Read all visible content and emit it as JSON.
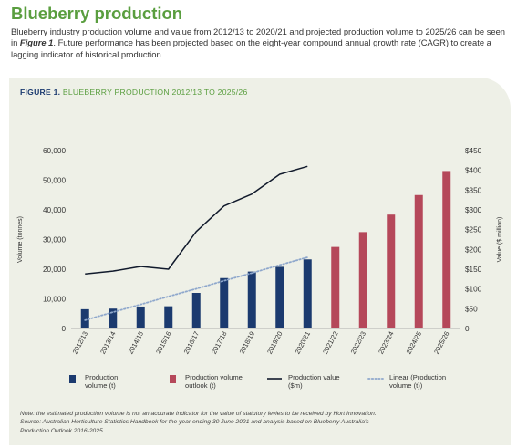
{
  "page": {
    "title": "Blueberry production",
    "intro": {
      "before": "Blueberry industry production volume and value from 2012/13 to 2020/21 and projected production volume to 2025/26 can be seen in ",
      "figure_ref": "Figure 1",
      "after": ". Future performance has been projected based on the eight-year compound annual growth rate (CAGR) to create a lagging indicator of historical production."
    }
  },
  "figure": {
    "number": "FIGURE 1.",
    "caption": "BLUEBERRY PRODUCTION 2012/13 TO 2025/26",
    "notes": {
      "line1": "Note: the estimated production volume is not an accurate indicator for the value of statutory levies to be received by Hort Innovation.",
      "line2": "Source: Australian Horticulture Statistics Handbook for the year ending 30 June 2021 and analysis based on Blueberry Australia's",
      "line3": "Production Outlook 2016-2025."
    }
  },
  "colors": {
    "volume": "#1b3a6f",
    "outlook": "#b5485a",
    "value_line": "#111a2c",
    "trend": "#8ea7cc",
    "axis": "#999999",
    "text": "#333333",
    "title": "#5a9e3f"
  },
  "chart_data": {
    "type": "bar",
    "categories": [
      "2012/13",
      "2013/14",
      "2014/15",
      "2015/16",
      "2016/17",
      "2017/18",
      "2018/19",
      "2019/20",
      "2020/21",
      "2021/22",
      "2022/23",
      "2023/24",
      "2024/25",
      "2025/26"
    ],
    "y_left": {
      "label": "Volume (tonnes)",
      "lim": [
        0,
        60000
      ],
      "ticks": [
        0,
        10000,
        20000,
        30000,
        40000,
        50000,
        60000
      ],
      "tick_labels": [
        "0",
        "10,000",
        "20,000",
        "30,000",
        "40,000",
        "50,000",
        "60,000"
      ]
    },
    "y_right": {
      "label": "Value ($ million)",
      "lim": [
        0,
        450
      ],
      "ticks": [
        0,
        50,
        100,
        150,
        200,
        250,
        300,
        350,
        400,
        450
      ],
      "tick_labels": [
        "0",
        "$50",
        "$100",
        "$150",
        "$200",
        "$250",
        "$300",
        "$350",
        "$400",
        "$450"
      ]
    },
    "grid": false,
    "legend_position": "bottom",
    "series": [
      {
        "name": "Production volume (t)",
        "legend_lines": [
          "Production",
          "volume (t)"
        ],
        "kind": "bar",
        "axis": "left",
        "values": [
          6500,
          6700,
          7400,
          7500,
          12000,
          17000,
          19200,
          20800,
          23300,
          null,
          null,
          null,
          null,
          null
        ]
      },
      {
        "name": "Production volume outlook (t)",
        "legend_lines": [
          "Production volume",
          "outlook (t)"
        ],
        "kind": "bar",
        "axis": "left",
        "values": [
          null,
          null,
          null,
          null,
          null,
          null,
          null,
          null,
          null,
          27500,
          32500,
          38400,
          45000,
          53100
        ]
      },
      {
        "name": "Production value ($m)",
        "legend_lines": [
          "Production value",
          "($m)"
        ],
        "kind": "line",
        "axis": "right",
        "values": [
          138,
          145,
          157,
          150,
          245,
          310,
          340,
          390,
          410,
          null,
          null,
          null,
          null,
          null
        ]
      },
      {
        "name": "Linear (Production volume (t))",
        "legend_lines": [
          "Linear (Production",
          "volume (t))"
        ],
        "kind": "trendline",
        "axis": "left",
        "values": [
          2800,
          5500,
          8100,
          10800,
          13400,
          16100,
          18700,
          21400,
          24000,
          null,
          null,
          null,
          null,
          null
        ]
      }
    ]
  }
}
